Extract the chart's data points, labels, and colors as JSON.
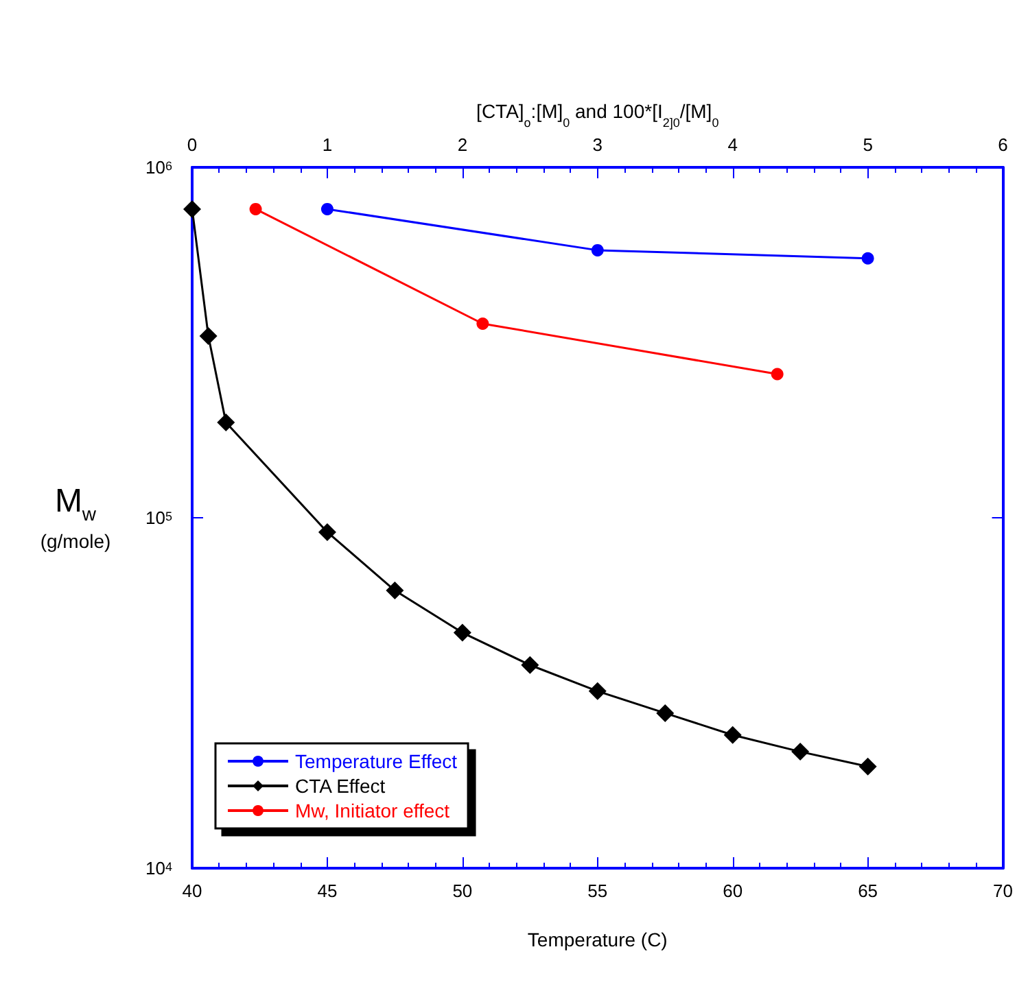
{
  "chart_data": {
    "type": "line",
    "xlabel": "Temperature (C)",
    "x2label": "[CTA]$_{o}$:[M]$_{0}$ and 100*[I$_{2]0}$/[M]$_{0}$",
    "ylabel": "M$_{w}$\n(g/mole)",
    "xlim": [
      40,
      70
    ],
    "xticks": [
      40,
      45,
      50,
      55,
      60,
      65,
      70
    ],
    "x2lim": [
      0,
      6
    ],
    "x2ticks": [
      0,
      1,
      2,
      3,
      4,
      5,
      6
    ],
    "ylim": [
      10000,
      1000000
    ],
    "yticks": [
      {
        "value": 10000,
        "label": "10$^{4}$"
      },
      {
        "value": 100000,
        "label": "10$^{5}$"
      },
      {
        "value": 1000000,
        "label": "10$^{6}$"
      }
    ],
    "log": "y",
    "grid": false,
    "legend": "bottom left",
    "series": [
      {
        "name": "Temperature Effect",
        "color": "#0000ff",
        "marker": "circle",
        "x": [
          45,
          55,
          65
        ],
        "values": [
          760000,
          580000,
          550000
        ]
      },
      {
        "name": "CTA Effect",
        "color": "#000000",
        "marker": "diamond",
        "axis": "x2",
        "x": [
          0,
          0.12,
          0.25,
          1,
          1.5,
          2,
          2.5,
          3,
          3.5,
          4,
          4.5,
          5
        ],
        "values": [
          760000,
          330000,
          187000,
          91000,
          62000,
          47000,
          38000,
          32000,
          27700,
          24000,
          21500,
          19500
        ]
      },
      {
        "name": "Mw, Initiator effect",
        "color": "#ff0000",
        "marker": "circle",
        "axis": "x2",
        "x": [
          0.47,
          2.15,
          4.33
        ],
        "values": [
          760000,
          358000,
          257000
        ]
      }
    ]
  }
}
